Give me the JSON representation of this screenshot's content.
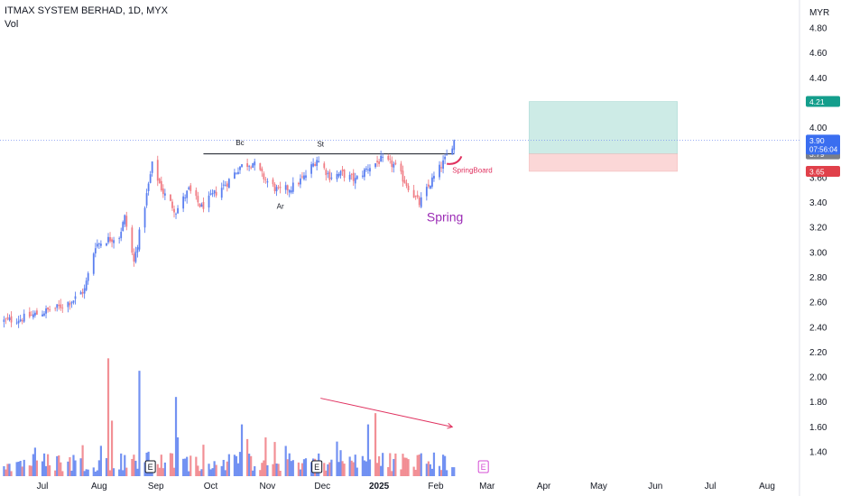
{
  "header": {
    "title": "ITMAX SYSTEM BERHAD, 1D, MYX",
    "vol_label": "Vol"
  },
  "price_scale": {
    "currency": "MYR",
    "current_price": "3.90",
    "countdown": "07:56:04",
    "stop_label": "3.79",
    "target_label": "4.21",
    "stoploss_label": "3.65"
  },
  "chart_data": {
    "type": "candlestick",
    "title": "ITMAX SYSTEM BERHAD, 1D, MYX",
    "y_axis": {
      "ticks": [
        "4.80",
        "4.60",
        "4.40",
        "4.20",
        "4.00",
        "3.80",
        "3.60",
        "3.40",
        "3.20",
        "3.00",
        "2.80",
        "2.60",
        "2.40",
        "2.20",
        "2.00",
        "1.80",
        "1.60",
        "1.40"
      ],
      "tick_values": [
        4.8,
        4.6,
        4.4,
        4.2,
        4.0,
        3.8,
        3.6,
        3.4,
        3.2,
        3.0,
        2.8,
        2.6,
        2.4,
        2.2,
        2.0,
        1.8,
        1.6,
        1.4
      ],
      "range": [
        1.26,
        4.9
      ]
    },
    "x_axis": {
      "ticks": [
        "Jul",
        "Aug",
        "Sep",
        "Oct",
        "Nov",
        "Dec",
        "2025",
        "Feb",
        "Mar",
        "Apr",
        "May",
        "Jun",
        "Jul",
        "Aug"
      ],
      "tick_dates": [
        "2024-07-01",
        "2024-08-01",
        "2024-09-01",
        "2024-10-01",
        "2024-11-01",
        "2024-12-01",
        "2025-01-01",
        "2025-02-01",
        "2025-03-01",
        "2025-04-01",
        "2025-05-01",
        "2025-06-01",
        "2025-07-01",
        "2025-08-01"
      ],
      "range": [
        "2024-06-08",
        "2025-08-31"
      ]
    },
    "price_close": [
      [
        "2024-06-10",
        2.45
      ],
      [
        "2024-06-20",
        2.47
      ],
      [
        "2024-07-01",
        2.52
      ],
      [
        "2024-07-10",
        2.56
      ],
      [
        "2024-07-18",
        2.62
      ],
      [
        "2024-07-24",
        2.7
      ],
      [
        "2024-07-30",
        3.06
      ],
      [
        "2024-08-05",
        3.1
      ],
      [
        "2024-08-12",
        3.13
      ],
      [
        "2024-08-15",
        3.28
      ],
      [
        "2024-08-20",
        2.92
      ],
      [
        "2024-08-26",
        3.38
      ],
      [
        "2024-08-30",
        3.7
      ],
      [
        "2024-09-05",
        3.48
      ],
      [
        "2024-09-12",
        3.33
      ],
      [
        "2024-09-19",
        3.5
      ],
      [
        "2024-09-26",
        3.36
      ],
      [
        "2024-10-03",
        3.47
      ],
      [
        "2024-10-10",
        3.56
      ],
      [
        "2024-10-17",
        3.69
      ],
      [
        "2024-10-24",
        3.72
      ],
      [
        "2024-10-31",
        3.58
      ],
      [
        "2024-11-07",
        3.49
      ],
      [
        "2024-11-14",
        3.52
      ],
      [
        "2024-11-21",
        3.6
      ],
      [
        "2024-11-28",
        3.75
      ],
      [
        "2024-12-05",
        3.61
      ],
      [
        "2024-12-12",
        3.63
      ],
      [
        "2024-12-19",
        3.58
      ],
      [
        "2024-12-26",
        3.68
      ],
      [
        "2025-01-02",
        3.74
      ],
      [
        "2025-01-09",
        3.7
      ],
      [
        "2025-01-16",
        3.55
      ],
      [
        "2025-01-23",
        3.39
      ],
      [
        "2025-01-30",
        3.58
      ],
      [
        "2025-02-06",
        3.74
      ],
      [
        "2025-02-11",
        3.9
      ]
    ],
    "volume_series": {
      "name": "Vol",
      "spikes": [
        [
          "2024-08-06",
          2.15,
          "down"
        ],
        [
          "2024-08-23",
          2.05,
          "up"
        ],
        [
          "2024-09-12",
          1.84,
          "up"
        ],
        [
          "2024-12-30",
          1.71,
          "down"
        ],
        [
          "2024-08-08",
          1.65,
          "down"
        ],
        [
          "2024-10-18",
          1.62,
          "up"
        ],
        [
          "2024-12-26",
          1.62,
          "up"
        ]
      ]
    },
    "earnings_markers": [
      "2024-08-29",
      "2024-11-28",
      "2025-02-27"
    ],
    "earnings_label": "E",
    "colors": {
      "up": "#5b7ff0",
      "down": "#f07c84"
    },
    "grid": false,
    "annotations": {
      "resistance_level": 3.79,
      "current_price_line": 3.9,
      "labels": [
        {
          "text": "Bc",
          "date": "2024-10-17",
          "price": 3.86
        },
        {
          "text": "St",
          "date": "2024-11-30",
          "price": 3.85
        },
        {
          "text": "Ar",
          "date": "2024-11-08",
          "price": 3.35
        },
        {
          "text": "Spring",
          "date": "2025-02-06",
          "price": 3.25
        },
        {
          "text": "SpringBoard",
          "date": "2025-02-21",
          "price": 3.64
        }
      ],
      "volume_trend_arrow": {
        "from": [
          "2024-11-30",
          1.83
        ],
        "to": [
          "2025-02-10",
          1.6
        ]
      },
      "long_position": {
        "from": "2025-03-24",
        "to": "2025-06-13",
        "target": 4.21,
        "entry": 3.79,
        "stop": 3.65
      }
    }
  }
}
